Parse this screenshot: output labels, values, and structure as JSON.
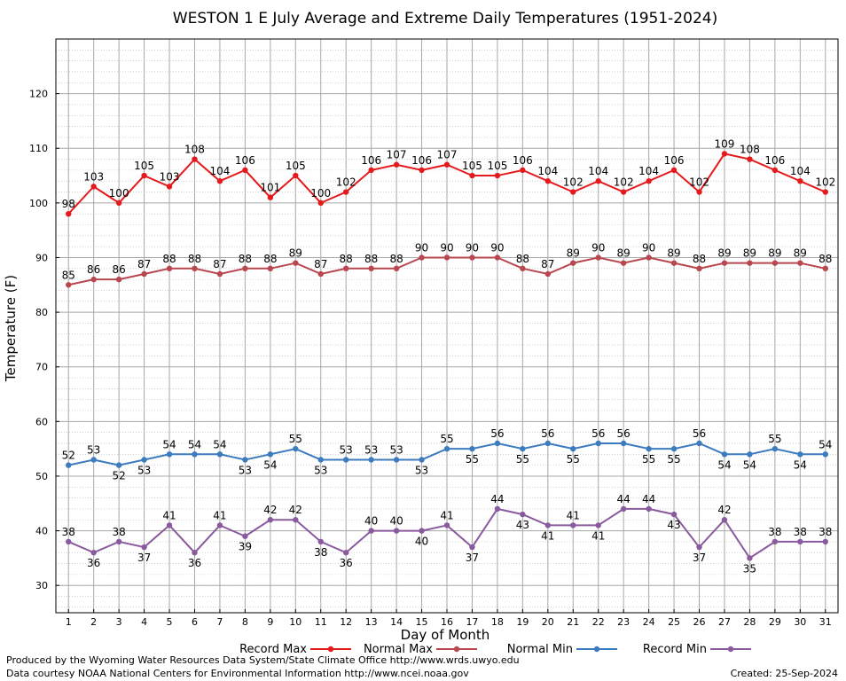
{
  "chart_data": {
    "type": "line",
    "title": "WESTON 1 E July Average and Extreme Daily Temperatures (1951-2024)",
    "xlabel": "Day of Month",
    "ylabel": "Temperature (F)",
    "x": [
      1,
      2,
      3,
      4,
      5,
      6,
      7,
      8,
      9,
      10,
      11,
      12,
      13,
      14,
      15,
      16,
      17,
      18,
      19,
      20,
      21,
      22,
      23,
      24,
      25,
      26,
      27,
      28,
      29,
      30,
      31
    ],
    "xlim": [
      0.5,
      31.5
    ],
    "ylim": [
      25,
      130
    ],
    "yticks": [
      30,
      40,
      50,
      60,
      70,
      80,
      90,
      100,
      110,
      120
    ],
    "grid": true,
    "legend_position": "bottom",
    "series": [
      {
        "name": "Record Max",
        "color": "#e41a1c",
        "values": [
          98,
          103,
          100,
          105,
          103,
          108,
          104,
          106,
          101,
          105,
          100,
          102,
          106,
          107,
          106,
          107,
          105,
          105,
          106,
          104,
          102,
          104,
          102,
          104,
          106,
          102,
          109,
          108,
          106,
          104,
          102
        ]
      },
      {
        "name": "Normal Max",
        "color": "#b8474f",
        "values": [
          85,
          86,
          86,
          87,
          88,
          88,
          87,
          88,
          88,
          89,
          87,
          88,
          88,
          88,
          90,
          90,
          90,
          90,
          88,
          87,
          89,
          90,
          89,
          90,
          89,
          88,
          89,
          89,
          89,
          89,
          88
        ]
      },
      {
        "name": "Normal Min",
        "color": "#3d7bbf",
        "values": [
          52,
          53,
          52,
          53,
          54,
          54,
          54,
          53,
          54,
          55,
          53,
          53,
          53,
          53,
          53,
          55,
          55,
          56,
          55,
          56,
          55,
          56,
          56,
          55,
          55,
          56,
          54,
          54,
          55,
          54,
          54
        ]
      },
      {
        "name": "Record Min",
        "color": "#8a5a9e",
        "values": [
          38,
          36,
          38,
          37,
          41,
          36,
          41,
          39,
          42,
          42,
          38,
          36,
          40,
          40,
          40,
          41,
          37,
          44,
          43,
          41,
          41,
          41,
          44,
          44,
          43,
          37,
          42,
          35,
          38,
          38,
          38
        ]
      }
    ]
  },
  "footer": {
    "produced_by": "Produced by the Wyoming Water Resources Data System/State Climate Office http://www.wrds.uwyo.edu",
    "data_courtesy": "Data courtesy NOAA National Centers for Environmental Information http://www.ncei.noaa.gov",
    "created": "Created: 25-Sep-2024"
  }
}
